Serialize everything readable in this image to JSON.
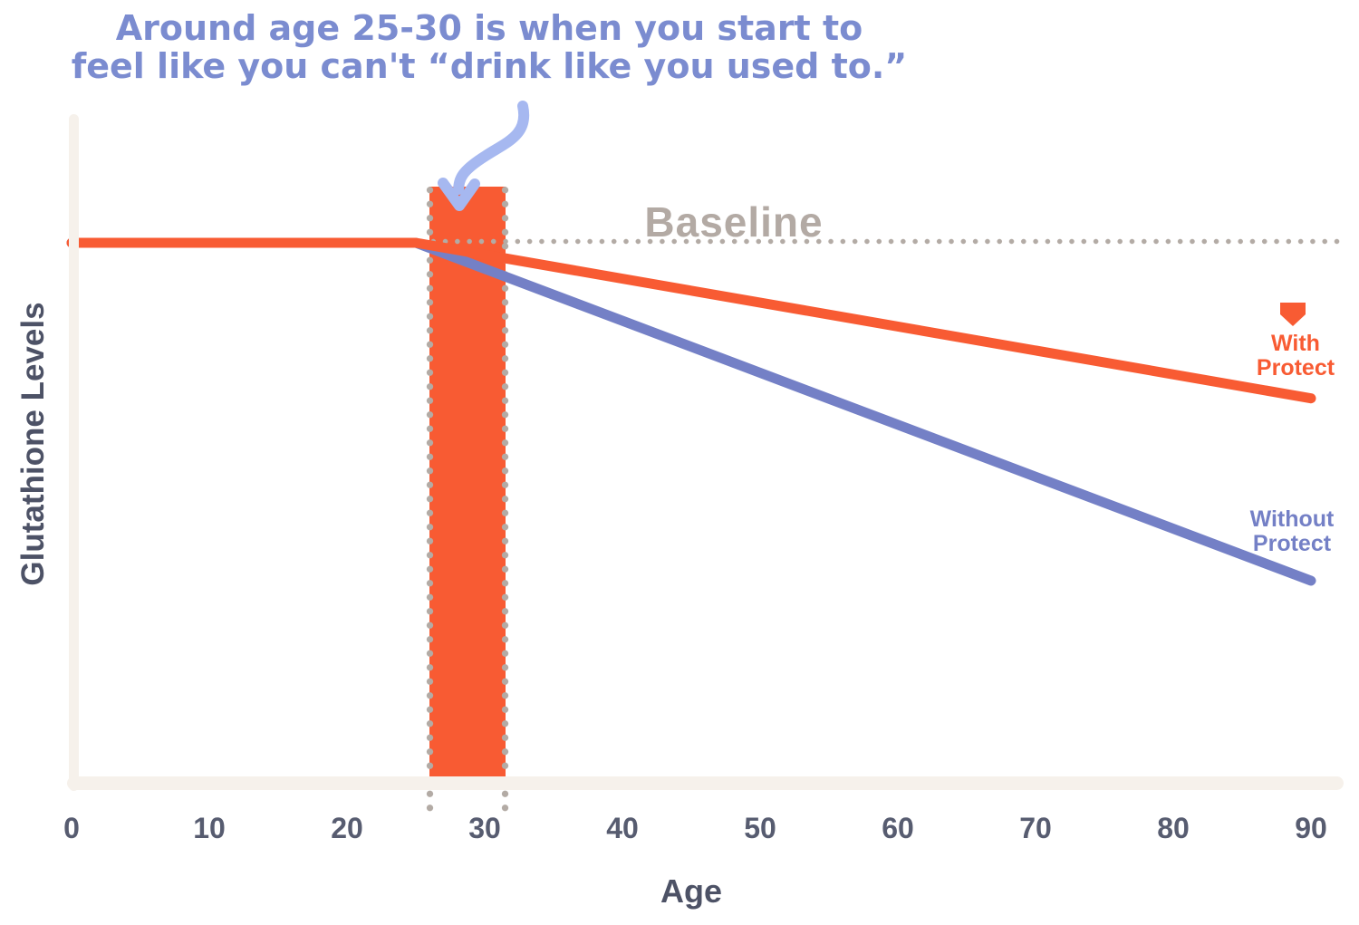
{
  "colors": {
    "orange": "#F85B33",
    "purple": "#7480C6",
    "arrow_blue": "#A6B8F0",
    "annotation_text": "#7B8CD0",
    "baseline_gray": "#B3AAA4",
    "dot_gray": "#B3ABA5",
    "axis_bar": "#F6F1EB",
    "axis_text_dark": "#4D5266",
    "tick_text": "#575C70"
  },
  "annotation": {
    "line1": "Around age 25-30 is when you start to",
    "line2": "feel like you can't “drink like you used to.”"
  },
  "baseline": {
    "label": "Baseline"
  },
  "legend": {
    "with_protect": {
      "line1": "With",
      "line2": "Protect"
    },
    "without_protect": {
      "line1": "Without",
      "line2": "Protect"
    }
  },
  "axes": {
    "x_label": "Age",
    "y_label": "Glutathione Levels",
    "x_ticks": [
      {
        "value": 0,
        "label": "0"
      },
      {
        "value": 10,
        "label": "10"
      },
      {
        "value": 20,
        "label": "20"
      },
      {
        "value": 30,
        "label": "30"
      },
      {
        "value": 40,
        "label": "40"
      },
      {
        "value": 50,
        "label": "50"
      },
      {
        "value": 60,
        "label": "60"
      },
      {
        "value": 70,
        "label": "70"
      },
      {
        "value": 80,
        "label": "80"
      },
      {
        "value": 90,
        "label": "90"
      }
    ]
  },
  "chart_data": {
    "type": "line",
    "title": "",
    "xlabel": "Age",
    "ylabel": "Glutathione Levels",
    "x_range": [
      0,
      90
    ],
    "grid": false,
    "baseline": {
      "label": "Baseline",
      "level": 100,
      "style": "dotted"
    },
    "highlight_band": {
      "age_start": 26,
      "age_end": 31.5,
      "note": "Around age 25-30 is when you start to feel like you can't “drink like you used to.”"
    },
    "divergence_age": 25,
    "series": [
      {
        "name": "With Protect",
        "color": "#F85B33",
        "points": [
          [
            0,
            100
          ],
          [
            25,
            100
          ],
          [
            90,
            71
          ]
        ]
      },
      {
        "name": "Without Protect",
        "color": "#7480C6",
        "points": [
          [
            0,
            100
          ],
          [
            25,
            100
          ],
          [
            90,
            37
          ]
        ]
      }
    ]
  }
}
